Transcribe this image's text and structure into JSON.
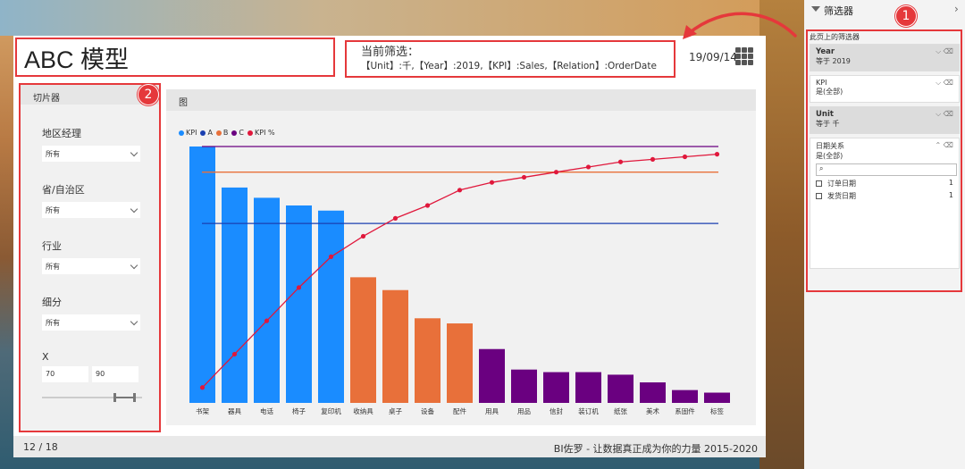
{
  "report": {
    "title": "ABC 模型",
    "filter_heading": "当前筛选：",
    "filter_text": "【Unit】:千,【Year】:2019,【KPI】:Sales,【Relation】:OrderDate",
    "date": "19/09/14",
    "page": "12 / 18",
    "footer_brand": "BI佐罗 - 让数据真正成为你的力量 2015-2020"
  },
  "slicer": {
    "header": "切片器",
    "badge": "2",
    "groups": [
      {
        "label": "地区经理",
        "value": "所有"
      },
      {
        "label": "省/自治区",
        "value": "所有"
      },
      {
        "label": "行业",
        "value": "所有"
      },
      {
        "label": "细分",
        "value": "所有"
      }
    ],
    "x": {
      "label": "X",
      "min": "70",
      "max": "90"
    }
  },
  "chart_panel": {
    "header": "图"
  },
  "chart_data": {
    "type": "bar",
    "categories": [
      "书架",
      "器具",
      "电话",
      "椅子",
      "复印机",
      "收纳具",
      "桌子",
      "设备",
      "配件",
      "用具",
      "用品",
      "信封",
      "装订机",
      "纸张",
      "美术",
      "系固件",
      "标签"
    ],
    "series": [
      {
        "name": "KPI",
        "values": [
          100,
          84,
          80,
          77,
          75,
          49,
          44,
          33,
          31,
          21,
          13,
          12,
          12,
          11,
          8,
          5,
          4
        ]
      },
      {
        "name": "KPI %",
        "values": [
          6,
          19,
          32,
          45,
          57,
          65,
          72,
          77,
          83,
          86,
          88,
          90,
          92,
          94,
          95,
          96,
          97
        ]
      }
    ],
    "bar_class": [
      "A",
      "A",
      "A",
      "A",
      "A",
      "B",
      "B",
      "B",
      "B",
      "C",
      "C",
      "C",
      "C",
      "C",
      "C",
      "C",
      "C"
    ],
    "reference_lines": {
      "A": 70,
      "B": 90,
      "C": 100
    },
    "legend": [
      "KPI",
      "A",
      "B",
      "C",
      "KPI %"
    ],
    "colors": {
      "KPI": "#1a8cff",
      "A": "#1a3fb0",
      "B": "#e8703a",
      "C": "#6a0080",
      "KPI %": "#e0183c"
    },
    "bar_colors": {
      "A": "#1a8cff",
      "B": "#e8703a",
      "C": "#6a0080"
    },
    "legend_placement": "top-left",
    "grid": false
  },
  "filter_pane": {
    "title": "筛选器",
    "badge": "1",
    "section_label": "此页上的筛选器",
    "cards": [
      {
        "name": "Year",
        "value": "等于 2019"
      },
      {
        "name": "KPI",
        "value": "是(全部)"
      },
      {
        "name": "Unit",
        "value": "等于 千"
      },
      {
        "name": "日期关系",
        "value": "是(全部)"
      }
    ],
    "options": [
      {
        "label": "订单日期",
        "count": "1"
      },
      {
        "label": "发货日期",
        "count": "1"
      }
    ]
  }
}
